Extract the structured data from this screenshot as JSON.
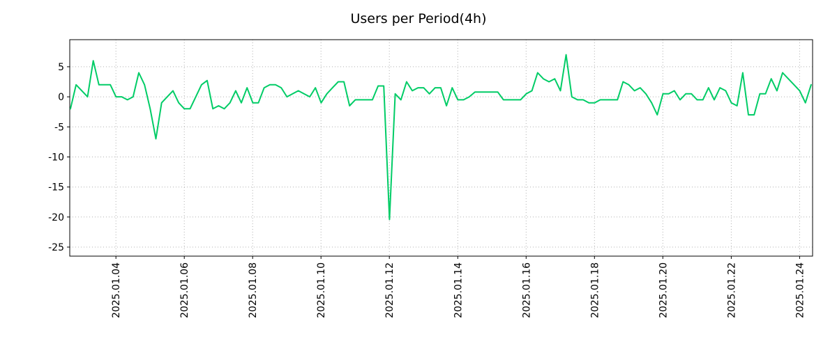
{
  "chart_data": {
    "type": "line",
    "title": "Users per Period(4h)",
    "xlabel": "",
    "ylabel": "",
    "grid": true,
    "legend": "none",
    "line_color": "#00cc66",
    "grid_color": "#b0b0b0",
    "background_color": "#ffffff",
    "xlim": [
      2.65,
      24.38
    ],
    "ylim": [
      -26.5,
      9.5
    ],
    "x_ticks": [
      {
        "value": 4,
        "label": "2025.01.04"
      },
      {
        "value": 6,
        "label": "2025.01.06"
      },
      {
        "value": 8,
        "label": "2025.01.08"
      },
      {
        "value": 10,
        "label": "2025.01.10"
      },
      {
        "value": 12,
        "label": "2025.01.12"
      },
      {
        "value": 14,
        "label": "2025.01.14"
      },
      {
        "value": 16,
        "label": "2025.01.16"
      },
      {
        "value": 18,
        "label": "2025.01.18"
      },
      {
        "value": 20,
        "label": "2025.01.20"
      },
      {
        "value": 22,
        "label": "2025.01.22"
      },
      {
        "value": 24,
        "label": "2025.01.24"
      }
    ],
    "y_ticks": [
      {
        "value": 5,
        "label": "5"
      },
      {
        "value": 0,
        "label": "0"
      },
      {
        "value": -5,
        "label": "-5"
      },
      {
        "value": -10,
        "label": "-10"
      },
      {
        "value": -15,
        "label": "-15"
      },
      {
        "value": -20,
        "label": "-20"
      },
      {
        "value": -25,
        "label": "-25"
      }
    ],
    "series": [
      {
        "name": "Users",
        "color": "#00cc66",
        "x_unit": "day of January 2025",
        "x_start": 2.67,
        "x_step": 0.166667,
        "y": [
          -2,
          2,
          1,
          0,
          6,
          2,
          2,
          2,
          0,
          0,
          -0.5,
          0,
          4,
          2,
          -2,
          -7,
          -1,
          0,
          1,
          -1,
          -2,
          -2,
          0,
          2,
          2.7,
          -2,
          -1.5,
          -2,
          -1,
          1,
          -1,
          1.5,
          -1,
          -1,
          1.5,
          2,
          2,
          1.5,
          0,
          0.5,
          1,
          0.5,
          0,
          1.5,
          -1,
          0.5,
          1.5,
          2.5,
          2.5,
          -1.5,
          -0.5,
          -0.5,
          -0.5,
          -0.5,
          1.8,
          1.8,
          -20.4,
          0.5,
          -0.5,
          2.5,
          1,
          1.5,
          1.5,
          0.5,
          1.5,
          1.5,
          -1.5,
          1.5,
          -0.5,
          -0.5,
          0,
          0.8,
          0.8,
          0.8,
          0.8,
          0.8,
          -0.5,
          -0.5,
          -0.5,
          -0.5,
          0.5,
          1,
          4,
          3,
          2.5,
          3,
          1,
          7,
          0,
          -0.5,
          -0.5,
          -1,
          -1,
          -0.5,
          -0.5,
          -0.5,
          -0.5,
          2.5,
          2,
          1,
          1.5,
          0.5,
          -1,
          -3,
          0.5,
          0.5,
          1,
          -0.5,
          0.5,
          0.5,
          -0.5,
          -0.5,
          1.5,
          -0.5,
          1.5,
          1,
          -1,
          -1.5,
          4,
          -3,
          -3,
          0.5,
          0.5,
          3,
          1,
          4,
          3,
          2,
          1,
          -1,
          2
        ]
      }
    ]
  }
}
